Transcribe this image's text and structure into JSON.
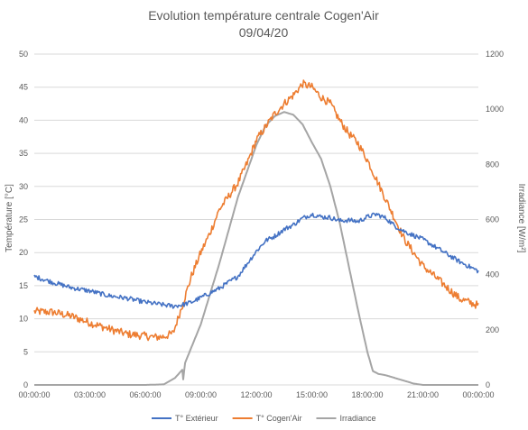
{
  "chart_data": {
    "type": "line",
    "title": "Evolution température centrale Cogen'Air",
    "subtitle": "09/04/20",
    "ylabel": "Température [°C]",
    "y2label": "Irradiance [W/m²]",
    "xlabel": "",
    "x_ticks": [
      "00:00:00",
      "03:00:00",
      "06:00:00",
      "09:00:00",
      "12:00:00",
      "15:00:00",
      "18:00:00",
      "21:00:00",
      "00:00:00"
    ],
    "x_range_hours": [
      0,
      24
    ],
    "y_ticks": [
      "0",
      "5",
      "10",
      "15",
      "20",
      "25",
      "30",
      "35",
      "40",
      "45",
      "50"
    ],
    "ylim": [
      0,
      50
    ],
    "y2_ticks": [
      "0",
      "200",
      "400",
      "600",
      "800",
      "1000",
      "1200"
    ],
    "y2lim": [
      0,
      1200
    ],
    "grid": true,
    "legend_position": "bottom",
    "series": [
      {
        "name": "T° Extérieur",
        "color": "#4472c4",
        "axis": "left",
        "noise": 0.35,
        "points": [
          [
            0,
            16.4
          ],
          [
            1,
            15.5
          ],
          [
            2,
            14.7
          ],
          [
            3,
            14.2
          ],
          [
            4,
            13.5
          ],
          [
            5,
            13.1
          ],
          [
            6,
            12.5
          ],
          [
            7,
            12.1
          ],
          [
            7.5,
            11.9
          ],
          [
            8,
            12.1
          ],
          [
            8.5,
            12.5
          ],
          [
            9,
            13.2
          ],
          [
            10,
            14.6
          ],
          [
            11,
            16.4
          ],
          [
            11.5,
            18.3
          ],
          [
            12,
            20.2
          ],
          [
            12.5,
            21.8
          ],
          [
            13,
            22.5
          ],
          [
            13.5,
            23.5
          ],
          [
            14,
            24.2
          ],
          [
            14.5,
            25.2
          ],
          [
            15,
            25.8
          ],
          [
            15.5,
            25.4
          ],
          [
            16,
            25.3
          ],
          [
            16.5,
            24.8
          ],
          [
            17,
            24.9
          ],
          [
            17.5,
            24.7
          ],
          [
            18,
            25.4
          ],
          [
            18.5,
            25.8
          ],
          [
            19,
            25.2
          ],
          [
            19.5,
            24.0
          ],
          [
            20,
            23.2
          ],
          [
            21,
            22.0
          ],
          [
            22,
            20.3
          ],
          [
            23,
            18.6
          ],
          [
            24,
            17.2
          ]
        ]
      },
      {
        "name": "T° Cogen'Air",
        "color": "#ed7d31",
        "axis": "left",
        "noise": 0.6,
        "points": [
          [
            0,
            11.1
          ],
          [
            1,
            11.0
          ],
          [
            2,
            10.4
          ],
          [
            3,
            9.4
          ],
          [
            4,
            8.5
          ],
          [
            5,
            7.7
          ],
          [
            6,
            7.4
          ],
          [
            6.5,
            7.2
          ],
          [
            7,
            7.3
          ],
          [
            7.5,
            7.8
          ],
          [
            8,
            12.0
          ],
          [
            8.5,
            16.5
          ],
          [
            9,
            20.0
          ],
          [
            9.5,
            23.0
          ],
          [
            10,
            26.5
          ],
          [
            10.5,
            28.5
          ],
          [
            11,
            30.5
          ],
          [
            11.5,
            33.5
          ],
          [
            12,
            37.0
          ],
          [
            12.5,
            39.0
          ],
          [
            13,
            41.0
          ],
          [
            13.5,
            42.5
          ],
          [
            14,
            43.8
          ],
          [
            14.5,
            45.5
          ],
          [
            15,
            45.0
          ],
          [
            15.5,
            43.5
          ],
          [
            16,
            42.5
          ],
          [
            16.5,
            40.0
          ],
          [
            17,
            38.0
          ],
          [
            17.5,
            36.5
          ],
          [
            18,
            34.0
          ],
          [
            18.5,
            31.0
          ],
          [
            19,
            28.0
          ],
          [
            19.5,
            25.0
          ],
          [
            20,
            22.0
          ],
          [
            21,
            18.0
          ],
          [
            22,
            15.5
          ],
          [
            23,
            13.0
          ],
          [
            24,
            12.0
          ]
        ]
      },
      {
        "name": "Irradiance",
        "color": "#a5a5a5",
        "axis": "right",
        "noise": 0,
        "points": [
          [
            0,
            0
          ],
          [
            6,
            0
          ],
          [
            7,
            2
          ],
          [
            7.6,
            25
          ],
          [
            8.0,
            55
          ],
          [
            8.05,
            20
          ],
          [
            8.15,
            80
          ],
          [
            9,
            220
          ],
          [
            10,
            440
          ],
          [
            11,
            680
          ],
          [
            12,
            870
          ],
          [
            12.5,
            940
          ],
          [
            13,
            975
          ],
          [
            13.5,
            990
          ],
          [
            14,
            980
          ],
          [
            14.5,
            945
          ],
          [
            15,
            880
          ],
          [
            15.5,
            820
          ],
          [
            16,
            720
          ],
          [
            16.5,
            590
          ],
          [
            17,
            430
          ],
          [
            17.5,
            270
          ],
          [
            18,
            120
          ],
          [
            18.3,
            50
          ],
          [
            18.6,
            40
          ],
          [
            19,
            35
          ],
          [
            19.5,
            25
          ],
          [
            20,
            15
          ],
          [
            20.5,
            5
          ],
          [
            21,
            0
          ],
          [
            24,
            0
          ]
        ]
      }
    ]
  }
}
